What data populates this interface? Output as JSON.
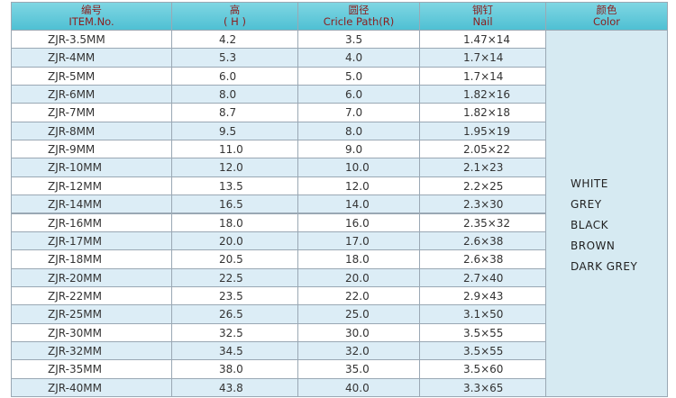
{
  "table": {
    "header": [
      {
        "zh": "编号",
        "en": "ITEM.No."
      },
      {
        "zh": "高",
        "en": "( H )"
      },
      {
        "zh": "圆径",
        "en": "Cricle Path(R)"
      },
      {
        "zh": "钢钉",
        "en": "Nail"
      },
      {
        "zh": "颜色",
        "en": "Color"
      }
    ],
    "rows": [
      [
        "ZJR-3.5MM",
        "4.2",
        "3.5",
        "1.47×14"
      ],
      [
        "ZJR-4MM",
        "5.3",
        "4.0",
        "1.7×14"
      ],
      [
        "ZJR-5MM",
        "6.0",
        "5.0",
        "1.7×14"
      ],
      [
        "ZJR-6MM",
        "8.0",
        "6.0",
        "1.82×16"
      ],
      [
        "ZJR-7MM",
        "8.7",
        "7.0",
        "1.82×18"
      ],
      [
        "ZJR-8MM",
        "9.5",
        "8.0",
        "1.95×19"
      ],
      [
        "ZJR-9MM",
        "11.0",
        "9.0",
        "2.05×22"
      ],
      [
        "ZJR-10MM",
        "12.0",
        "10.0",
        "2.1×23"
      ],
      [
        "ZJR-12MM",
        "13.5",
        "12.0",
        "2.2×25"
      ],
      [
        "ZJR-14MM",
        "16.5",
        "14.0",
        "2.3×30"
      ],
      [
        "ZJR-16MM",
        "18.0",
        "16.0",
        "2.35×32"
      ],
      [
        "ZJR-17MM",
        "20.0",
        "17.0",
        "2.6×38"
      ],
      [
        "ZJR-18MM",
        "20.5",
        "18.0",
        "2.6×38"
      ],
      [
        "ZJR-20MM",
        "22.5",
        "20.0",
        "2.7×40"
      ],
      [
        "ZJR-22MM",
        "23.5",
        "22.0",
        "2.9×43"
      ],
      [
        "ZJR-25MM",
        "26.5",
        "25.0",
        "3.1×50"
      ],
      [
        "ZJR-30MM",
        "32.5",
        "30.0",
        "3.5×55"
      ],
      [
        "ZJR-32MM",
        "34.5",
        "32.0",
        "3.5×55"
      ],
      [
        "ZJR-35MM",
        "38.0",
        "35.0",
        "3.5×60"
      ],
      [
        "ZJR-40MM",
        "43.8",
        "40.0",
        "3.3×65"
      ]
    ],
    "colors": [
      "WHITE",
      "GREY",
      "BLACK",
      "BROWN",
      "DARK GREY"
    ]
  }
}
